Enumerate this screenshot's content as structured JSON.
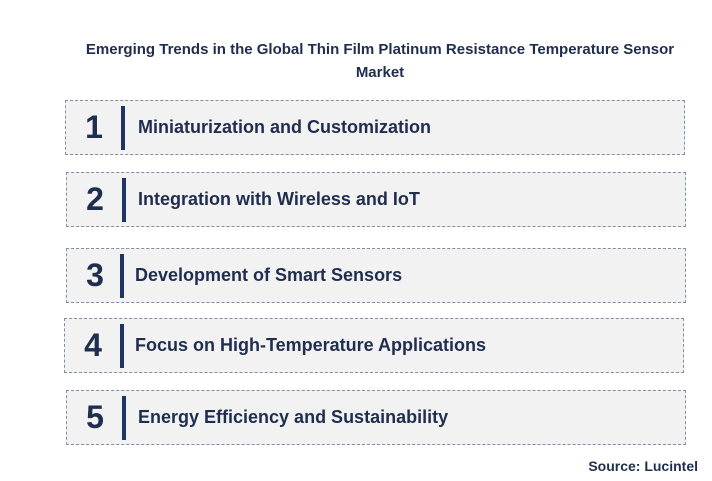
{
  "title": "Emerging Trends in the Global Thin Film Platinum Resistance Temperature Sensor Market",
  "trends": [
    {
      "number": "1",
      "label": "Miniaturization and Customization"
    },
    {
      "number": "2",
      "label": "Integration with Wireless and IoT"
    },
    {
      "number": "3",
      "label": "Development of Smart Sensors"
    },
    {
      "number": "4",
      "label": "Focus on High-Temperature Applications"
    },
    {
      "number": "5",
      "label": "Energy Efficiency and Sustainability"
    }
  ],
  "source": "Source: Lucintel",
  "colors": {
    "text": "#1f2d4e",
    "bar": "#1f3463",
    "box_fill": "#f2f2f2",
    "box_border": "#7f8fa6"
  }
}
